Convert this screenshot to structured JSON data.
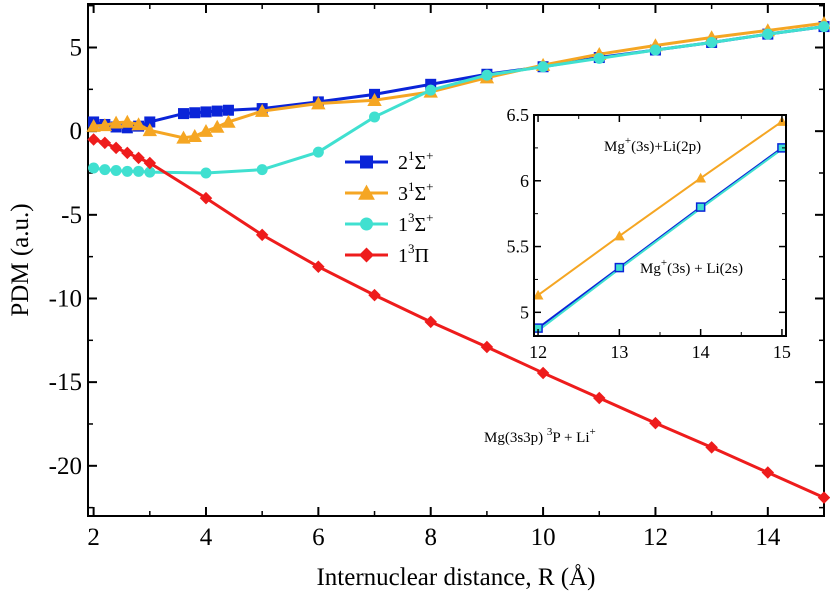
{
  "chart_data": [
    {
      "type": "line",
      "xlabel": "Internuclear distance, R (Å)",
      "ylabel": "PDM (a.u.)",
      "xlim": [
        1.9,
        15
      ],
      "ylim": [
        -23,
        7.6
      ],
      "x_ticks": [
        2,
        4,
        6,
        8,
        10,
        12,
        14
      ],
      "y_ticks": [
        5,
        0,
        -5,
        -10,
        -15,
        -20
      ],
      "x_tick_labels": [
        "2",
        "4",
        "6",
        "8",
        "10",
        "12",
        "14"
      ],
      "y_tick_labels": [
        "5",
        "0",
        "-5",
        "-10",
        "-15",
        "-20"
      ],
      "legend_position": "center-left",
      "series": [
        {
          "name": "2^1Σ^+",
          "label_base": "2",
          "label_sup": "1",
          "label_sym": "Σ",
          "label_tail": "+",
          "color": "#0a24d8",
          "marker": "square",
          "x": [
            2.0,
            2.2,
            2.4,
            2.6,
            2.8,
            3.0,
            3.6,
            3.8,
            4.0,
            4.2,
            4.4,
            5,
            6,
            7,
            8,
            9,
            10,
            11,
            12,
            13,
            14,
            15
          ],
          "y": [
            0.55,
            0.4,
            0.25,
            0.2,
            0.3,
            0.55,
            1.05,
            1.1,
            1.15,
            1.2,
            1.25,
            1.35,
            1.75,
            2.2,
            2.8,
            3.4,
            3.85,
            4.4,
            4.85,
            5.3,
            5.8,
            6.25
          ]
        },
        {
          "name": "3^1Σ^+",
          "label_base": "3",
          "label_sup": "1",
          "label_sym": "Σ",
          "label_tail": "+",
          "color": "#f5a623",
          "marker": "triangle",
          "x": [
            2.0,
            2.2,
            2.4,
            2.6,
            2.8,
            3.0,
            3.6,
            3.8,
            4.0,
            4.2,
            4.4,
            5,
            6,
            7,
            8,
            9,
            10,
            11,
            12,
            13,
            14,
            15
          ],
          "y": [
            0.3,
            0.35,
            0.5,
            0.55,
            0.4,
            0.05,
            -0.4,
            -0.3,
            0.0,
            0.25,
            0.55,
            1.2,
            1.65,
            1.85,
            2.35,
            3.2,
            3.95,
            4.6,
            5.12,
            5.6,
            6.02,
            6.45
          ]
        },
        {
          "name": "1^3Σ^+",
          "label_base": "1",
          "label_sup": "3",
          "label_sym": "Σ",
          "label_tail": "+",
          "color": "#40e0d0",
          "marker": "circle",
          "x": [
            2.0,
            2.2,
            2.4,
            2.6,
            2.8,
            3.0,
            4.0,
            5,
            6,
            7,
            8,
            9,
            10,
            11,
            12,
            13,
            14,
            15
          ],
          "y": [
            -2.2,
            -2.3,
            -2.35,
            -2.4,
            -2.4,
            -2.45,
            -2.5,
            -2.3,
            -1.25,
            0.85,
            2.45,
            3.35,
            3.85,
            4.35,
            4.85,
            5.3,
            5.8,
            6.25
          ]
        },
        {
          "name": "1^3Π",
          "label_base": "1",
          "label_sup": "3",
          "label_sym": "Π",
          "label_tail": "",
          "color": "#ee1c1c",
          "marker": "diamond",
          "x": [
            2.0,
            2.2,
            2.4,
            2.6,
            2.8,
            3.0,
            4,
            5,
            6,
            7,
            8,
            9,
            10,
            11,
            12,
            13,
            14,
            15
          ],
          "y": [
            -0.5,
            -0.7,
            -1.0,
            -1.3,
            -1.6,
            -1.9,
            -4.0,
            -6.2,
            -8.1,
            -9.8,
            -11.4,
            -12.9,
            -14.45,
            -15.95,
            -17.45,
            -18.9,
            -20.4,
            -21.9
          ]
        }
      ],
      "annotations": [
        {
          "text_main": "Mg(3s3p) ",
          "text_sup": "3",
          "text_after": "P + Li",
          "text_sup2": "+"
        }
      ]
    },
    {
      "type": "line",
      "role": "inset",
      "xlim": [
        11.95,
        15.05
      ],
      "ylim": [
        4.82,
        6.5
      ],
      "x_ticks": [
        12,
        13,
        14,
        15
      ],
      "y_ticks": [
        5,
        5.5,
        6,
        6.5
      ],
      "x_tick_labels": [
        "12",
        "13",
        "14",
        "15"
      ],
      "y_tick_labels": [
        "5",
        "5.5",
        "6",
        "6.5"
      ],
      "series": [
        {
          "name": "3^1Σ^+",
          "color": "#f5a623",
          "marker": "triangle",
          "x": [
            12,
            13,
            14,
            15
          ],
          "y": [
            5.13,
            5.58,
            6.02,
            6.45
          ]
        },
        {
          "name": "2^1Σ^+",
          "color": "#0a24d8",
          "marker": "square",
          "x": [
            12,
            13,
            14,
            15
          ],
          "y": [
            4.88,
            5.34,
            5.8,
            6.25
          ]
        },
        {
          "name": "1^3Σ^+",
          "color": "#40e0d0",
          "marker": "circle",
          "x": [
            12,
            13,
            14,
            15
          ],
          "y": [
            4.86,
            5.33,
            5.79,
            6.24
          ]
        }
      ],
      "annotations": [
        {
          "text_a": "Mg",
          "sup_a": "+",
          "text_b": "(3s)+Li(2p)"
        },
        {
          "text_a": "Mg",
          "sup_a": "+",
          "text_b": "(3s) + Li(2s)"
        }
      ]
    }
  ]
}
